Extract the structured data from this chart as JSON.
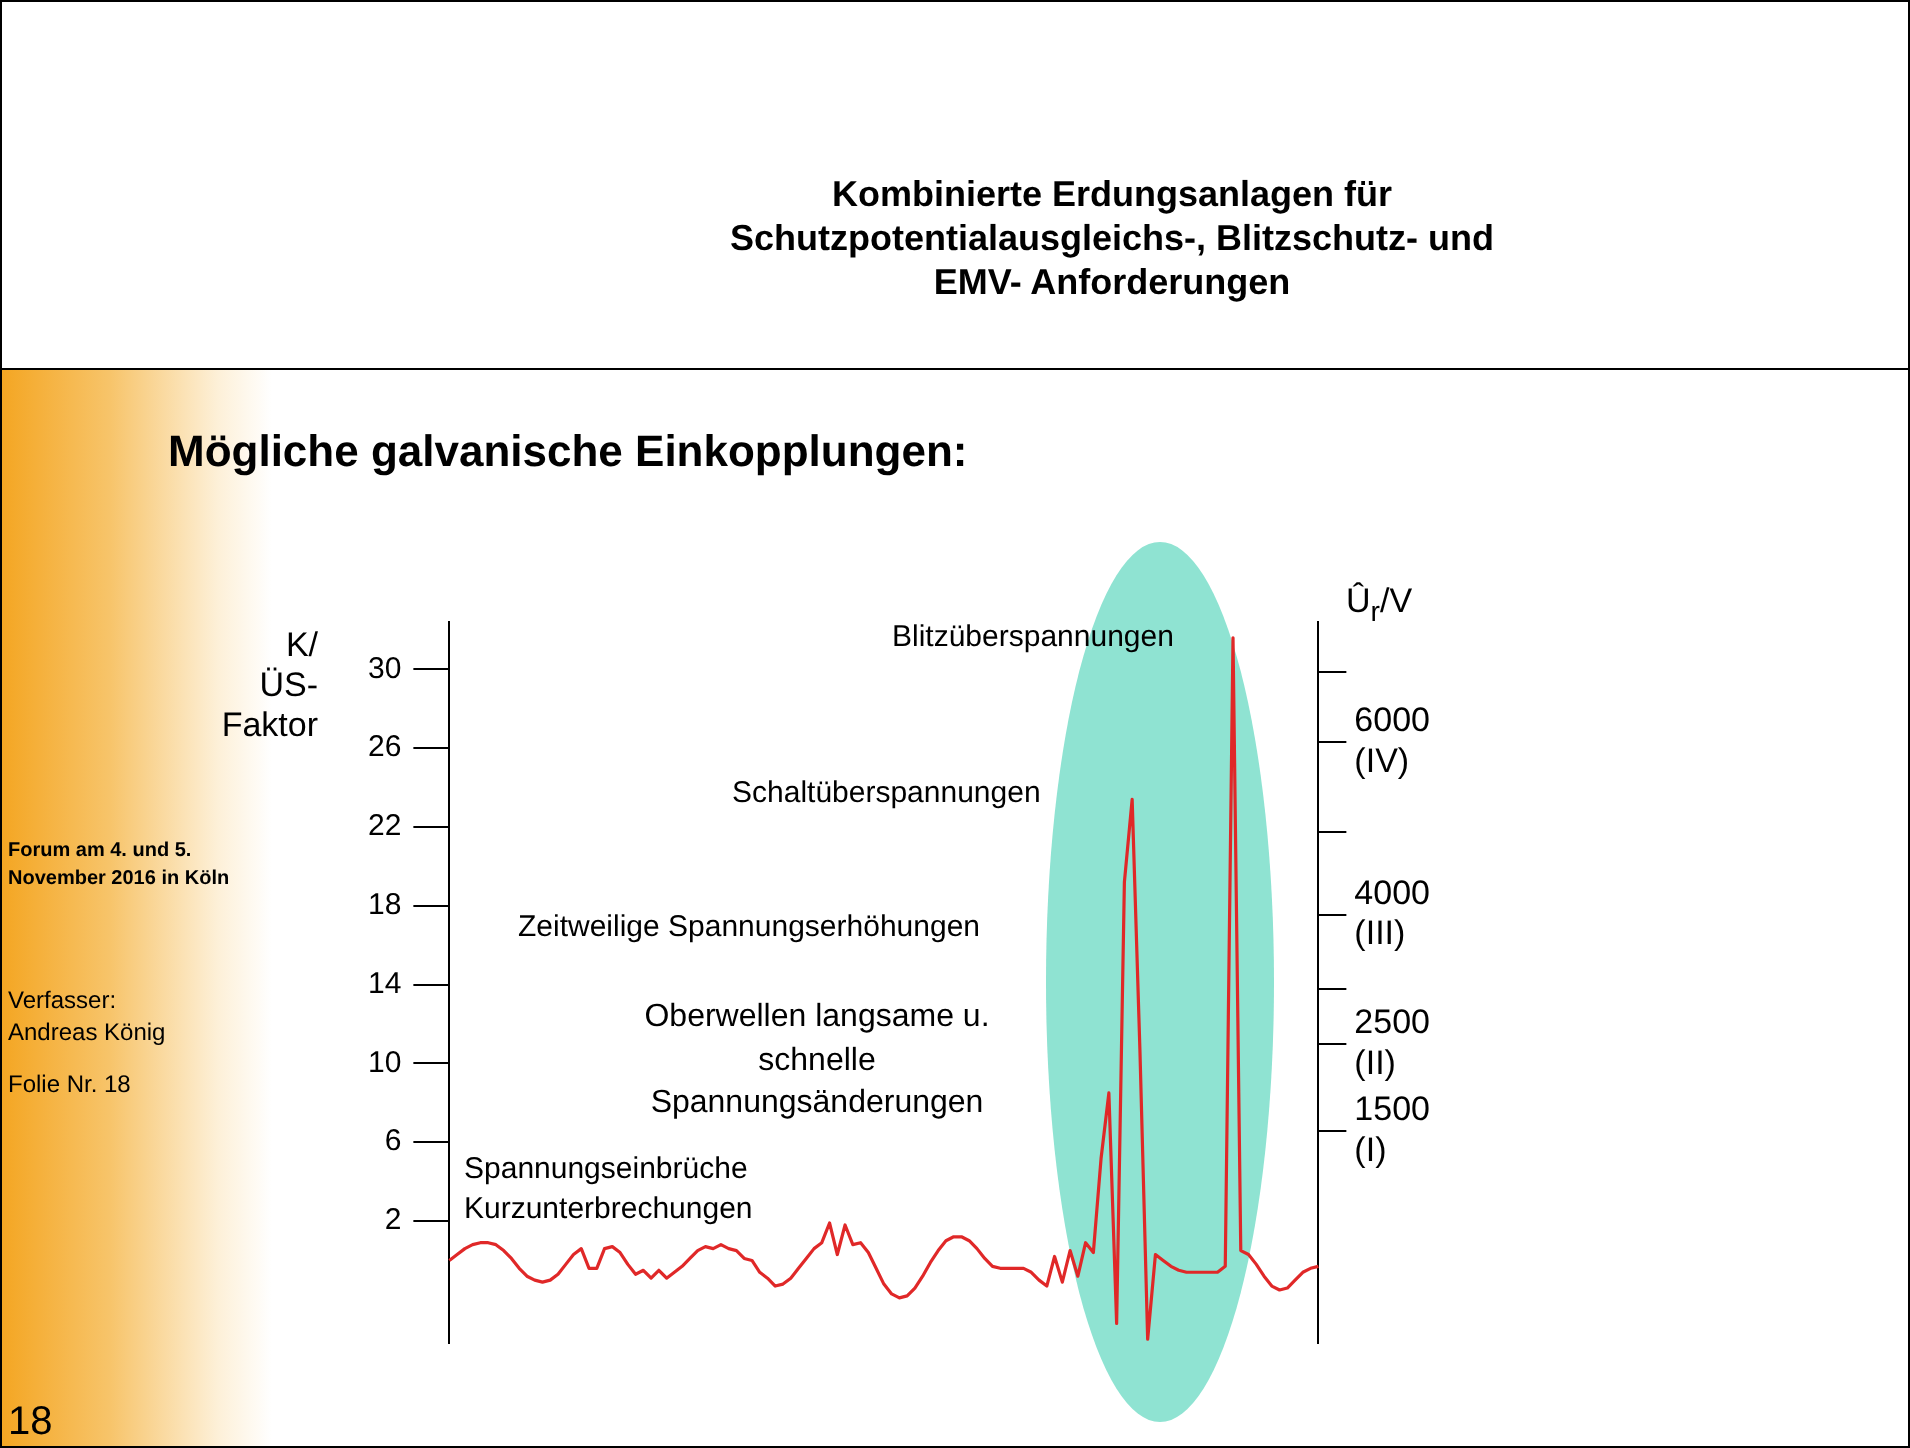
{
  "chart_data": {
    "type": "line",
    "title": "Kombinierte Erdungsanlagen für Schutzpotentialausgleichs-, Blitzschutz- und EMV- Anforderungen",
    "subtitle": "Mögliche galvanische Einkopplungen:",
    "ylabel": "K/ ÜS- Faktor",
    "y2label": "Û$_{r}$/V",
    "annotations": [
      "Blitzüberspannungen",
      "Schaltüberspannungen",
      "Zeitweilige Spannungserhöhungen",
      "Oberwellen langsame u. schnelle Spannungsänderungen",
      "Spannungseinbrüche Kurzunterbrechungen",
      "Forum am 4. und 5. November 2016 in Köln",
      "Verfasser: Andreas König",
      "Folie Nr. 18",
      "18"
    ],
    "categories": [
      null,
      null,
      null,
      null,
      null,
      null,
      null,
      null,
      null,
      null,
      null,
      null,
      null,
      null,
      null,
      null,
      null,
      null,
      null,
      null,
      null,
      null,
      null,
      null,
      null,
      null,
      null,
      null,
      null,
      null,
      null,
      null,
      null,
      null,
      null,
      null,
      null,
      null,
      null,
      null,
      null,
      null,
      null,
      null,
      null,
      null,
      null,
      null,
      null,
      null,
      null,
      null,
      null,
      null,
      null,
      null,
      null,
      null,
      null,
      null,
      null,
      null,
      null,
      null,
      null,
      null,
      null,
      null,
      null,
      null,
      null,
      null,
      null,
      null,
      null,
      null,
      null,
      null,
      null,
      null,
      null,
      null,
      null,
      null,
      null,
      null,
      null,
      null,
      null,
      null,
      null,
      null,
      null,
      null,
      null,
      null,
      null,
      null,
      null,
      null,
      null,
      null,
      null,
      null,
      null,
      null,
      null,
      null,
      null,
      null,
      null,
      null,
      null
    ],
    "series": [
      {
        "color": "#e02828",
        "values": [
          0,
          0.3,
          0.6,
          0.8,
          0.9,
          0.9,
          0.8,
          0.5,
          0.1,
          -0.4,
          -0.8,
          -1.0,
          -1.1,
          -1.0,
          -0.7,
          -0.2,
          0.3,
          0.6,
          -0.4,
          -0.4,
          0.6,
          0.7,
          0.4,
          -0.2,
          -0.7,
          -0.5,
          -0.9,
          -0.5,
          -0.9,
          -0.6,
          -0.3,
          0.1,
          0.5,
          0.7,
          0.6,
          0.8,
          0.6,
          0.5,
          0.1,
          0.0,
          -0.6,
          -0.9,
          -1.3,
          -1.2,
          -0.9,
          -0.4,
          0.1,
          0.6,
          0.9,
          1.9,
          0.3,
          1.8,
          0.8,
          0.9,
          0.4,
          -0.4,
          -1.2,
          -1.7,
          -1.9,
          -1.8,
          -1.4,
          -0.8,
          -0.1,
          0.5,
          1.0,
          1.2,
          1.2,
          1.0,
          0.6,
          0.1,
          -0.3,
          -0.4,
          -0.4,
          -0.4,
          -0.4,
          -0.6,
          -1.0,
          -1.3,
          0.2,
          -1.1,
          0.5,
          -0.8,
          0.9,
          0.4,
          5.2,
          8.5,
          -3.2,
          19.2,
          23.4,
          10.7,
          -4.0,
          0.3,
          0.0,
          -0.3,
          -0.5,
          -0.6,
          -0.6,
          -0.6,
          -0.6,
          -0.6,
          -0.3,
          31.6,
          0.5,
          0.3,
          -0.2,
          -0.8,
          -1.3,
          -1.5,
          -1.4,
          -1.0,
          -0.6,
          -0.4,
          -0.3
        ]
      }
    ],
    "ylim": [
      -4.2,
      32.4
    ],
    "yticks": [
      2,
      6,
      10,
      14,
      18,
      22,
      26,
      30
    ],
    "y2lim": [
      -958,
      7387
    ],
    "y2ticks": [
      {
        "value": 1500,
        "label": "1500 (I)"
      },
      {
        "value": 2500,
        "label": "2500 (II)"
      },
      {
        "value": 3136,
        "label": null
      },
      {
        "value": 4000,
        "label": "4000 (III)"
      },
      {
        "value": 4961,
        "label": null
      },
      {
        "value": 6000,
        "label": "6000 (IV)"
      },
      {
        "value": 6807,
        "label": null
      }
    ],
    "grid": false,
    "legend": false,
    "marker": "none",
    "line_style": "solid",
    "tick_labels": "y"
  }
}
